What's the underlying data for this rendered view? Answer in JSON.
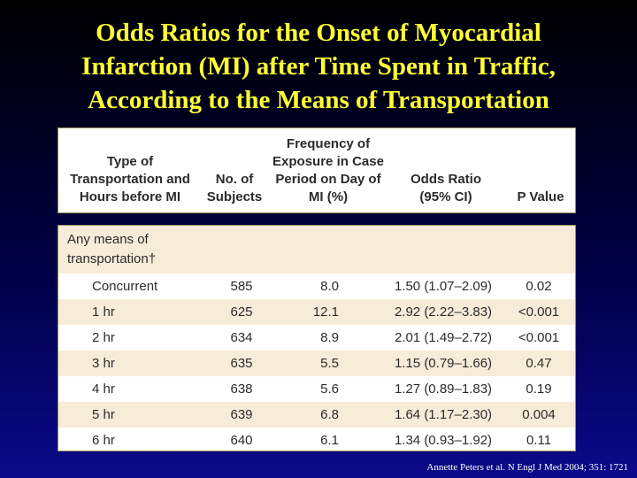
{
  "title": {
    "line1": "Odds Ratios for the Onset of Myocardial",
    "line2": "Infarction (MI) after Time Spent in Traffic,",
    "line3": "According to the Means of Transportation"
  },
  "table": {
    "headers": {
      "type": "Type of Transportation and Hours before MI",
      "subjects": "No. of Subjects",
      "frequency": "Frequency of Exposure in Case Period on Day of MI (%)",
      "odds": "Odds Ratio (95% CI)",
      "p": "P Value"
    },
    "group_label": "Any means of transportation†",
    "rows": [
      {
        "label": "Concurrent",
        "n": "585",
        "freq": "8.0",
        "or": "1.50 (1.07–2.09)",
        "p": "0.02"
      },
      {
        "label": "1 hr",
        "n": "625",
        "freq": "12.1",
        "or": "2.92 (2.22–3.83)",
        "p": "<0.001"
      },
      {
        "label": "2 hr",
        "n": "634",
        "freq": "8.9",
        "or": "2.01 (1.49–2.72)",
        "p": "<0.001"
      },
      {
        "label": "3 hr",
        "n": "635",
        "freq": "5.5",
        "or": "1.15 (0.79–1.66)",
        "p": "0.47"
      },
      {
        "label": "4 hr",
        "n": "638",
        "freq": "5.6",
        "or": "1.27 (0.89–1.83)",
        "p": "0.19"
      },
      {
        "label": "5 hr",
        "n": "639",
        "freq": "6.8",
        "or": "1.64 (1.17–2.30)",
        "p": "0.004"
      },
      {
        "label": "6 hr",
        "n": "640",
        "freq": "6.1",
        "or": "1.34 (0.93–1.92)",
        "p": "0.11"
      }
    ]
  },
  "citation": "Annette Peters et al. N Engl J Med 2004; 351: 1721"
}
